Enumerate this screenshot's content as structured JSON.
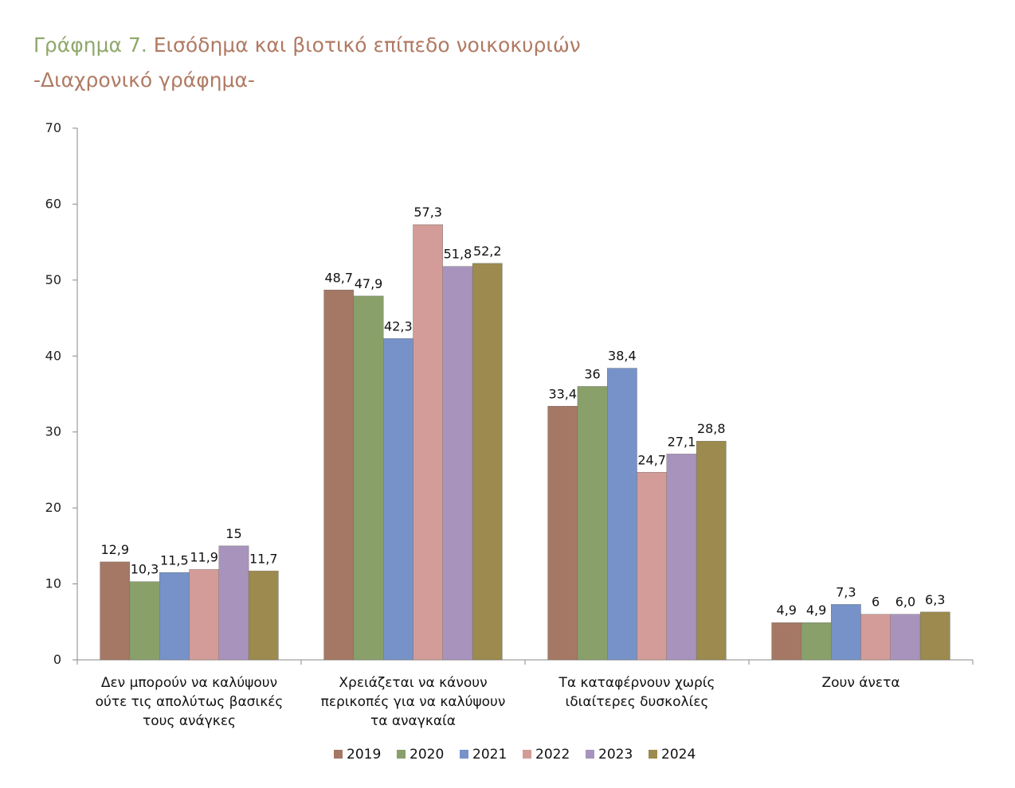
{
  "title": {
    "prefix": "Γράφημα 7.",
    "main": " Εισόδημα και βιοτικό επίπεδο νοικοκυριών",
    "line2": "-Διαχρονικό γράφημα-",
    "prefix_color": "#8fa86b",
    "main_color": "#b07a63"
  },
  "chart_data": {
    "type": "bar",
    "categories": [
      [
        "Δεν μπορούν να καλύψουν",
        "ούτε τις απολύτως βασικές",
        "τους ανάγκες"
      ],
      [
        "Χρειάζεται να κάνουν",
        "περικοπές για να καλύψουν",
        "τα αναγκαία"
      ],
      [
        "Τα καταφέρνουν χωρίς",
        "ιδιαίτερες δυσκολίες"
      ],
      [
        "Ζουν άνετα"
      ]
    ],
    "series": [
      {
        "name": "2019",
        "color": "#a57865",
        "values": [
          12.9,
          48.7,
          33.4,
          4.9
        ],
        "labels": [
          "12,9",
          "48,7",
          "33,4",
          "4,9"
        ]
      },
      {
        "name": "2020",
        "color": "#89a06a",
        "values": [
          10.3,
          47.9,
          36,
          4.9
        ],
        "labels": [
          "10,3",
          "47,9",
          "36",
          "4,9"
        ]
      },
      {
        "name": "2021",
        "color": "#7692c9",
        "values": [
          11.5,
          42.3,
          38.4,
          7.3
        ],
        "labels": [
          "11,5",
          "42,3",
          "38,4",
          "7,3"
        ]
      },
      {
        "name": "2022",
        "color": "#d39c98",
        "values": [
          11.9,
          57.3,
          24.7,
          6
        ],
        "labels": [
          "11,9",
          "57,3",
          "24,7",
          "6"
        ]
      },
      {
        "name": "2023",
        "color": "#a893bd",
        "values": [
          15,
          51.8,
          27.1,
          6.0
        ],
        "labels": [
          "15",
          "51,8",
          "27,1",
          "6,0"
        ]
      },
      {
        "name": "2024",
        "color": "#9c8a4e",
        "values": [
          11.7,
          52.2,
          28.8,
          6.3
        ],
        "labels": [
          "11,7",
          "52,2",
          "28,8",
          "6,3"
        ]
      }
    ],
    "ylim": [
      0,
      70
    ],
    "yticks": [
      0,
      10,
      20,
      30,
      40,
      50,
      60,
      70
    ],
    "grid": false,
    "legend_position": "bottom"
  }
}
